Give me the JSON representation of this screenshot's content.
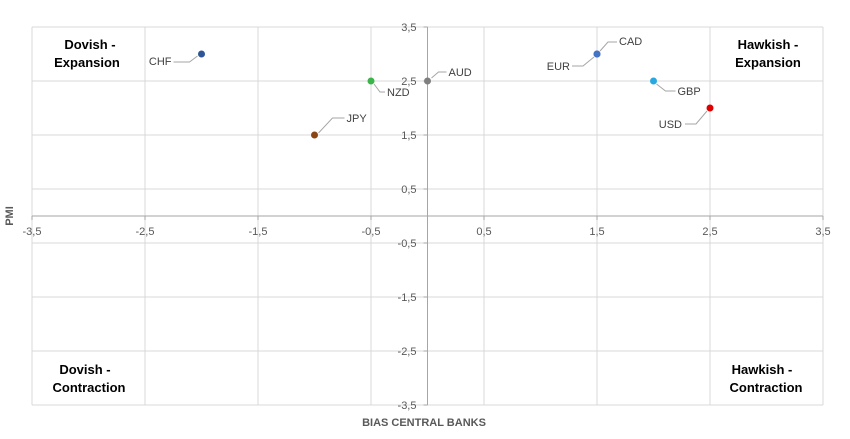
{
  "chart_data": {
    "type": "scatter",
    "title": "",
    "xlabel": "BIAS CENTRAL BANKS",
    "ylabel": "PMI",
    "xlim": [
      -3.5,
      3.5
    ],
    "ylim": [
      -3.5,
      3.5
    ],
    "x_major": 1.0,
    "y_major": 1.0,
    "x_tick_labels": [
      "-3,5",
      "-2,5",
      "-1,5",
      "-0,5",
      "0,5",
      "1,5",
      "2,5",
      "3,5"
    ],
    "x_tick_values": [
      -3.5,
      -2.5,
      -1.5,
      -0.5,
      0.5,
      1.5,
      2.5,
      3.5
    ],
    "y_tick_labels": [
      "3,5",
      "2,5",
      "1,5",
      "0,5",
      "-0,5",
      "-1,5",
      "-2,5",
      "-3,5"
    ],
    "y_tick_values": [
      3.5,
      2.5,
      1.5,
      0.5,
      -0.5,
      -1.5,
      -2.5,
      -3.5
    ],
    "grid": true,
    "legend": "none",
    "points": [
      {
        "label": "CHF",
        "x": -2.0,
        "y": 3.0,
        "color": "#2e5597"
      },
      {
        "label": "NZD",
        "x": -0.5,
        "y": 2.5,
        "color": "#3cb44b"
      },
      {
        "label": "AUD",
        "x": 0.0,
        "y": 2.5,
        "color": "#7f7f7f"
      },
      {
        "label": "JPY",
        "x": -1.0,
        "y": 1.5,
        "color": "#8b4513"
      },
      {
        "label": "CAD",
        "x": 1.5,
        "y": 3.0,
        "color": "#4472c4"
      },
      {
        "label": "EUR",
        "x": 1.5,
        "y": 3.0,
        "color": "#4472c4"
      },
      {
        "label": "GBP",
        "x": 2.0,
        "y": 2.5,
        "color": "#29a8e0"
      },
      {
        "label": "USD",
        "x": 2.5,
        "y": 2.0,
        "color": "#e00000"
      }
    ],
    "quadrants": {
      "top_left": [
        "Dovish -",
        "Expansion"
      ],
      "top_right": [
        "Hawkish -",
        "Expansion"
      ],
      "bottom_left": [
        "Dovish -",
        "Contraction"
      ],
      "bottom_right": [
        "Hawkish -",
        "Contraction"
      ]
    }
  }
}
